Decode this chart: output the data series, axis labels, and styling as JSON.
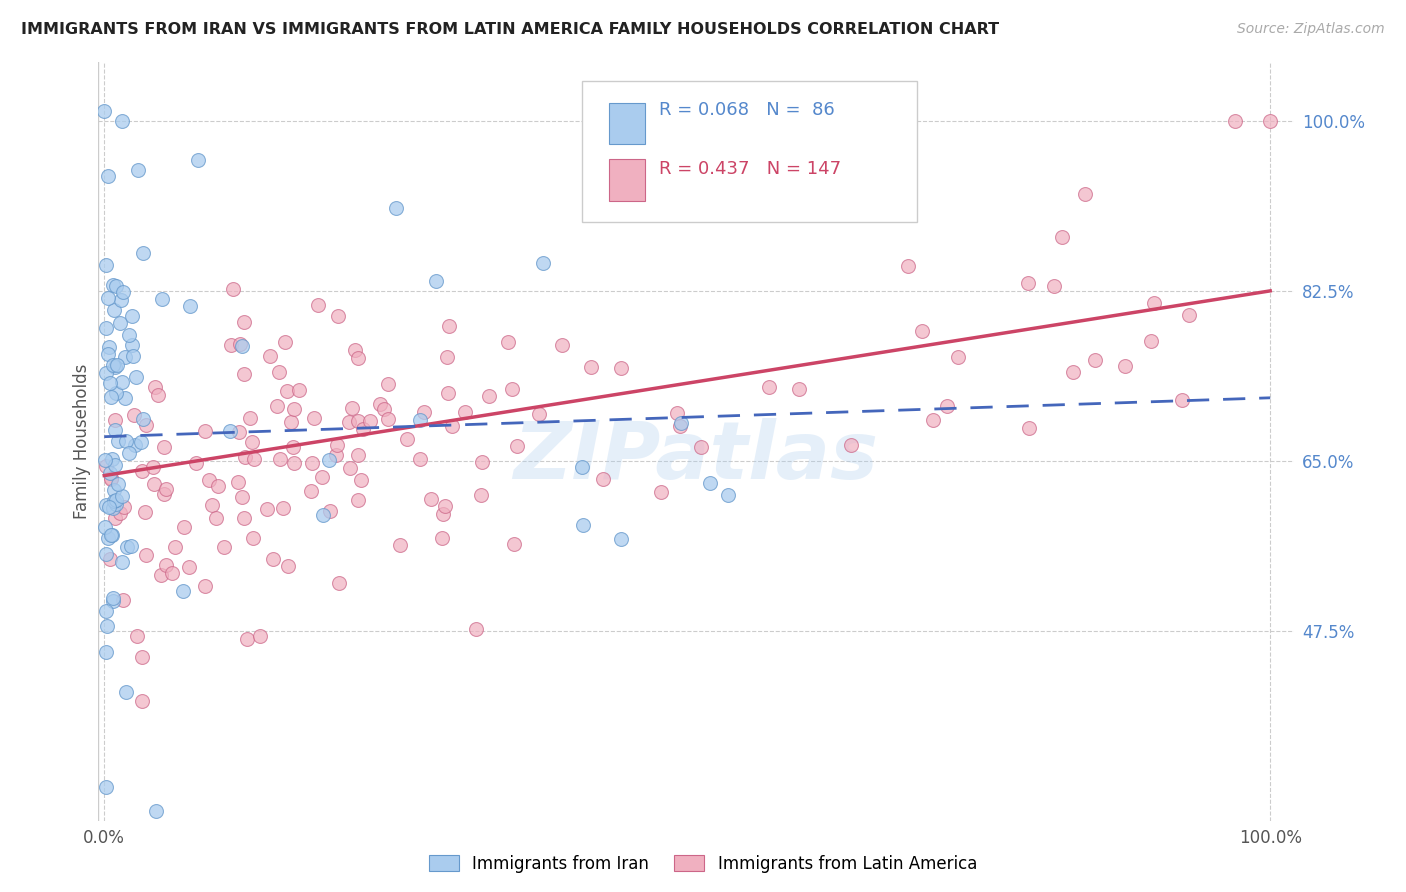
{
  "title": "IMMIGRANTS FROM IRAN VS IMMIGRANTS FROM LATIN AMERICA FAMILY HOUSEHOLDS CORRELATION CHART",
  "source": "Source: ZipAtlas.com",
  "ylabel": "Family Households",
  "iran_R": 0.068,
  "iran_N": 86,
  "latam_R": 0.437,
  "latam_N": 147,
  "iran_color": "#aaccee",
  "latam_color": "#f0b0c0",
  "iran_edge_color": "#6699cc",
  "latam_edge_color": "#cc6688",
  "iran_line_color": "#4466bb",
  "latam_line_color": "#cc4466",
  "ytick_vals": [
    0.475,
    0.65,
    0.825,
    1.0
  ],
  "ytick_labels": [
    "47.5%",
    "65.0%",
    "82.5%",
    "100.0%"
  ],
  "ytick_color": "#5588cc",
  "xlim": [
    -0.005,
    1.02
  ],
  "ylim": [
    0.28,
    1.06
  ],
  "legend_iran_label": "Immigrants from Iran",
  "legend_latam_label": "Immigrants from Latin America",
  "iran_line_intercept": 0.675,
  "iran_line_slope": 0.04,
  "latam_line_intercept": 0.635,
  "latam_line_slope": 0.19
}
